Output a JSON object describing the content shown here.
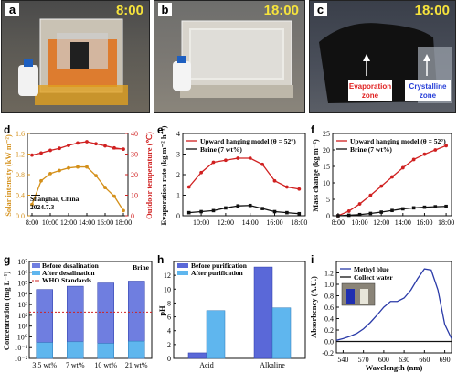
{
  "photos": [
    {
      "letter": "a",
      "time": "8:00"
    },
    {
      "letter": "b",
      "time": "18:00"
    },
    {
      "letter": "c",
      "time": "18:00",
      "zone_left": "Evaporation",
      "zone_left2": "zone",
      "zone_right": "Crystalline",
      "zone_right2": "zone"
    }
  ],
  "chart_data": [
    {
      "panel": "d",
      "type": "line",
      "x_ticks": [
        "8:00",
        "10:00",
        "12:00",
        "14:00",
        "16:00",
        "18:00"
      ],
      "x": [
        8,
        9,
        10,
        11,
        12,
        13,
        14,
        15,
        16,
        17,
        18
      ],
      "series": [
        {
          "axis": "left",
          "values": [
            0.22,
            0.68,
            0.82,
            0.88,
            0.93,
            0.95,
            0.95,
            0.78,
            0.55,
            0.38,
            0.1
          ],
          "color": "#d4901a"
        },
        {
          "axis": "right",
          "values": [
            29.5,
            30.5,
            31.8,
            32.8,
            34.2,
            35.4,
            36.0,
            35.0,
            34.0,
            33.0,
            32.4
          ],
          "color": "#d02020"
        }
      ],
      "ylabel_left": "Solar intensity (kW m⁻²)",
      "ylabel_right": "Outdoor temperature (℃)",
      "ylim_left": [
        0,
        1.6
      ],
      "yticks_left": [
        "0.0",
        "0.4",
        "0.8",
        "1.2",
        "1.6"
      ],
      "ylim_right": [
        0,
        40
      ],
      "yticks_right": [
        "0",
        "10",
        "20",
        "30",
        "40"
      ],
      "annotation": "Shanghai, China",
      "annotation2": "2024.7.3"
    },
    {
      "panel": "e",
      "type": "line",
      "x": [
        9,
        10,
        11,
        12,
        13,
        14,
        15,
        16,
        17,
        18
      ],
      "x_ticks": [
        "10:00",
        "12:00",
        "14:00",
        "16:00",
        "18:00"
      ],
      "series": [
        {
          "name": "Upward hanging model (θ = 52°)",
          "values": [
            1.4,
            2.1,
            2.6,
            2.7,
            2.8,
            2.8,
            2.5,
            1.7,
            1.4,
            1.3
          ],
          "color": "#d02020"
        },
        {
          "name": "Brine (7 wt%)",
          "values": [
            0.15,
            0.2,
            0.25,
            0.38,
            0.48,
            0.5,
            0.35,
            0.2,
            0.15,
            0.1
          ],
          "color": "#111111"
        }
      ],
      "ylabel": "Evaporation rate (kg m⁻² h⁻¹)",
      "ylim": [
        0,
        4
      ],
      "yticks": [
        "0",
        "1",
        "2",
        "3",
        "4"
      ]
    },
    {
      "panel": "f",
      "type": "line",
      "x": [
        8,
        9,
        10,
        11,
        12,
        13,
        14,
        15,
        16,
        17,
        18
      ],
      "x_ticks": [
        "8:00",
        "10:00",
        "12:00",
        "14:00",
        "16:00",
        "18:00"
      ],
      "series": [
        {
          "name": "Upward hanging model (θ = 52°)",
          "values": [
            0,
            1.4,
            3.6,
            6.2,
            9.0,
            11.8,
            14.6,
            17.1,
            18.7,
            20.0,
            21.3
          ],
          "color": "#d02020"
        },
        {
          "name": "Brine (7 wt%)",
          "values": [
            0,
            0.15,
            0.35,
            0.7,
            1.1,
            1.6,
            2.1,
            2.4,
            2.6,
            2.75,
            2.85
          ],
          "color": "#111111"
        }
      ],
      "ylabel": "Mass change (kg m⁻²)",
      "ylim": [
        0,
        25
      ],
      "yticks": [
        "0",
        "5",
        "10",
        "15",
        "20",
        "25"
      ]
    },
    {
      "panel": "g",
      "type": "bar",
      "scale": "log",
      "categories": [
        "3.5 wt%",
        "7 wt%",
        "10 wt%",
        "21 wt%"
      ],
      "series": [
        {
          "name": "Before desalination",
          "values": [
            25000,
            50000,
            100000,
            150000
          ]
        },
        {
          "name": "After desalination",
          "values": [
            0.3,
            0.35,
            0.25,
            0.4
          ]
        }
      ],
      "reference": {
        "name": "WHO Standards",
        "value": 200
      },
      "ylabel": "Concentration (mg L⁻¹)",
      "corner_label": "Brine",
      "yticks": [
        "10⁻²",
        "10⁻¹",
        "10⁰",
        "10¹",
        "10²",
        "10³",
        "10⁴",
        "10⁵",
        "10⁶",
        "10⁷"
      ]
    },
    {
      "panel": "h",
      "type": "bar",
      "categories": [
        "Acid",
        "Alkaline"
      ],
      "series": [
        {
          "name": "Before purification",
          "values": [
            0.8,
            13.2
          ]
        },
        {
          "name": "After  purification",
          "values": [
            6.9,
            7.3
          ]
        }
      ],
      "ylabel": "pH",
      "ylim": [
        0,
        14
      ],
      "yticks": [
        "0",
        "2",
        "4",
        "6",
        "8",
        "10",
        "12"
      ]
    },
    {
      "panel": "i",
      "type": "line",
      "legend": [
        "Methyl blue",
        "Collect water"
      ],
      "x": [
        530,
        540,
        550,
        560,
        570,
        580,
        590,
        600,
        610,
        620,
        630,
        640,
        650,
        660,
        670,
        680,
        690,
        700
      ],
      "series": [
        {
          "name": "Methyl blue",
          "values": [
            0.02,
            0.05,
            0.09,
            0.14,
            0.22,
            0.33,
            0.46,
            0.6,
            0.7,
            0.7,
            0.76,
            0.9,
            1.1,
            1.27,
            1.25,
            0.9,
            0.3,
            0.05
          ],
          "color": "#2a3aa8"
        },
        {
          "name": "Collect water",
          "values": [
            0,
            0,
            0,
            0,
            0,
            0,
            0,
            0,
            0,
            0,
            0,
            0,
            0,
            0,
            0,
            0,
            0,
            0
          ],
          "color": "#111111"
        }
      ],
      "xlabel": "Wavelength (nm)",
      "ylabel": "Absorbency (A.U.)",
      "xlim": [
        530,
        700
      ],
      "xticks": [
        "540",
        "570",
        "600",
        "630",
        "660",
        "690"
      ],
      "ylim": [
        -0.2,
        1.4
      ],
      "yticks": [
        "-0.2",
        "0.0",
        "0.2",
        "0.4",
        "0.6",
        "0.8",
        "1.0",
        "1.2"
      ]
    }
  ]
}
